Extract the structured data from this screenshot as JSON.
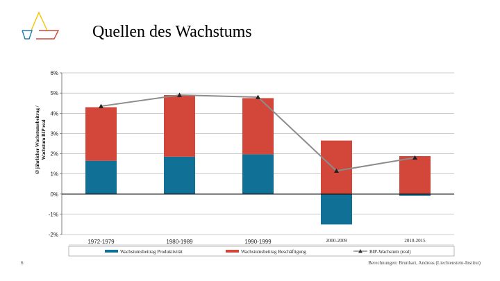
{
  "slide": {
    "title": "Quellen des Wachstums",
    "number": "6",
    "source": "Berechnungen: Brunhart, Andreas (Liechtenstein-Institut)",
    "logo_colors": [
      "#f2c400",
      "#1f7bb0",
      "#d2473a"
    ]
  },
  "chart_data": {
    "type": "bar",
    "stacked": true,
    "categories": [
      "1972-1979",
      "1980-1989",
      "1990-1999",
      "2000-2009",
      "2010-2015"
    ],
    "series": [
      {
        "name": "Wachstumsbeitrag Produktivität",
        "kind": "bar",
        "color": "#117096",
        "values": [
          1.65,
          1.85,
          1.97,
          -1.5,
          -0.08
        ]
      },
      {
        "name": "Wachstumsbeitrag Beschäftigung",
        "kind": "bar",
        "color": "#d2473a",
        "values": [
          2.65,
          3.05,
          2.78,
          2.65,
          1.88
        ]
      },
      {
        "name": "BIP-Wachstum (real)",
        "kind": "line",
        "color": "#8c8c8c",
        "marker": "triangle",
        "values": [
          4.35,
          4.9,
          4.8,
          1.15,
          1.8
        ]
      }
    ],
    "yticks": [
      "6%",
      "5%",
      "4%",
      "3%",
      "2%",
      "1%",
      "0%",
      "-1%",
      "-2%"
    ],
    "ylim": [
      -2,
      6
    ],
    "ylabel": [
      "Ø jährlicher Wachstumsbeitrag /",
      "Wachstum BIP real"
    ],
    "xlabel": "",
    "grid": true,
    "legend": "bottom"
  }
}
